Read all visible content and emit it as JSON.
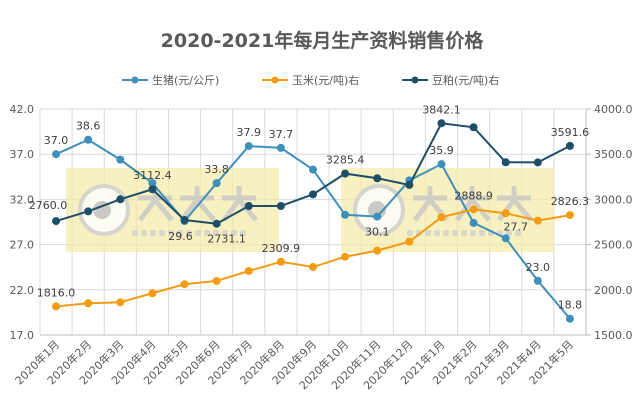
{
  "chart_data": {
    "type": "line",
    "title": "2020-2021年每月生产资料销售价格",
    "categories": [
      "2020年1月",
      "2020年2月",
      "2020年3月",
      "2020年4月",
      "2020年5月",
      "2020年6月",
      "2020年7月",
      "2020年8月",
      "2020年9月",
      "2020年10月",
      "2020年11月",
      "2020年12月",
      "2021年1月",
      "2021年2月",
      "2021年3月",
      "2021年4月",
      "2021年5月"
    ],
    "y_left": {
      "min": 17.0,
      "max": 42.0,
      "step": 5,
      "ticks": [
        "17.0",
        "22.0",
        "27.0",
        "32.0",
        "37.0",
        "42.0"
      ]
    },
    "y_right": {
      "min": 1500,
      "max": 4000,
      "step": 500,
      "ticks": [
        "1500.0",
        "2000.0",
        "2500.0",
        "3000.0",
        "3500.0",
        "4000.0"
      ]
    },
    "grid": true,
    "legend_position": "top",
    "series": [
      {
        "name": "生猪(元/公斤)",
        "axis": "left",
        "color": "#3f8fbc",
        "values": [
          37.0,
          38.6,
          36.4,
          33.8,
          29.6,
          33.8,
          37.9,
          37.7,
          35.3,
          30.3,
          30.1,
          34.1,
          35.9,
          29.4,
          27.7,
          23.0,
          18.8
        ],
        "labels": {
          "0": "37.0",
          "1": "38.6",
          "4": "29.6",
          "5": "33.8",
          "6": "37.9",
          "7": "37.7",
          "10": "30.1",
          "12": "35.9",
          "14": "27.7",
          "15": "23.0",
          "16": "18.8"
        }
      },
      {
        "name": "玉米(元/吨)右",
        "axis": "right",
        "color": "#f39c12",
        "values": [
          1816.0,
          1851,
          1862,
          1962,
          2062,
          2098,
          2208,
          2309.9,
          2252,
          2366,
          2433,
          2533,
          2803,
          2888.9,
          2847,
          2765,
          2826.3
        ],
        "labels": {
          "0": "1816.0",
          "7": "2309.9",
          "13": "2888.9",
          "16": "2826.3"
        }
      },
      {
        "name": "豆粕(元/吨)右",
        "axis": "right",
        "color": "#1f4e68",
        "values": [
          2760.0,
          2868,
          3001,
          3112.4,
          2772,
          2731.1,
          2927,
          2927,
          3056,
          3285.4,
          3234,
          3160,
          3842.1,
          3798,
          3411,
          3409,
          3591.6
        ],
        "labels": {
          "0": "2760.0",
          "3": "3112.4",
          "5": "2731.1",
          "9": "3285.4",
          "12": "3842.1",
          "16": "3591.6"
        }
      }
    ],
    "watermark": {
      "text": "大畜牧",
      "url": "www.dxumu.com"
    }
  }
}
